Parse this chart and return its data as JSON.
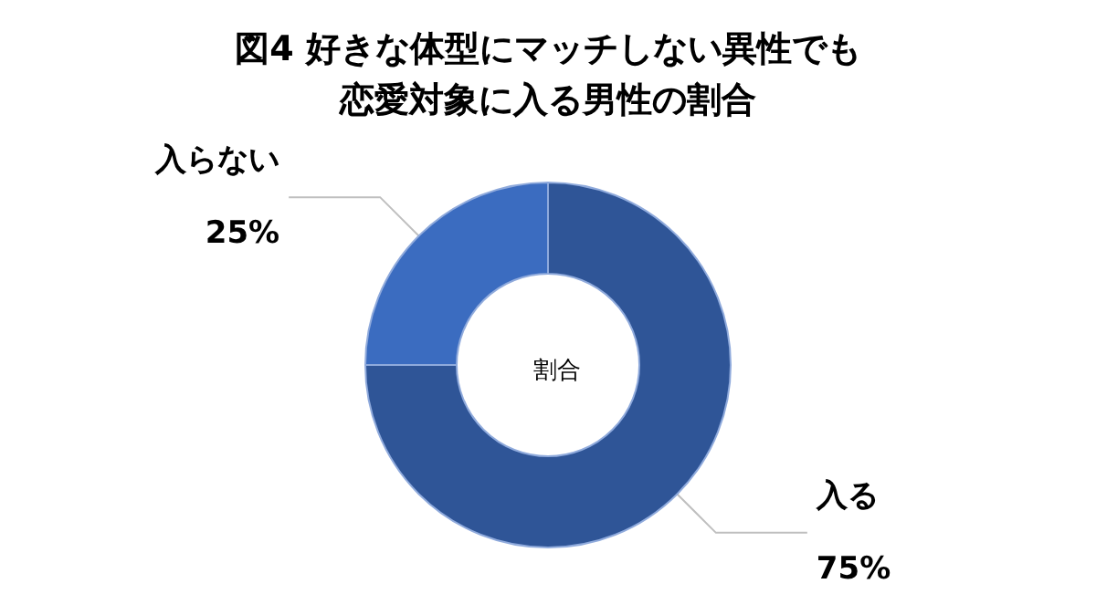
{
  "chart_data": {
    "type": "donut",
    "title": "図4 好きな体型にマッチしない異性でも恋愛対象に入る男性の割合",
    "categories": [
      "入る",
      "入らない"
    ],
    "values": [
      75,
      25
    ],
    "value_labels": [
      "75%",
      "25%"
    ],
    "colors": [
      "#2f5597",
      "#3b6cc0"
    ],
    "annotations": [
      "割合"
    ],
    "legend": false
  }
}
